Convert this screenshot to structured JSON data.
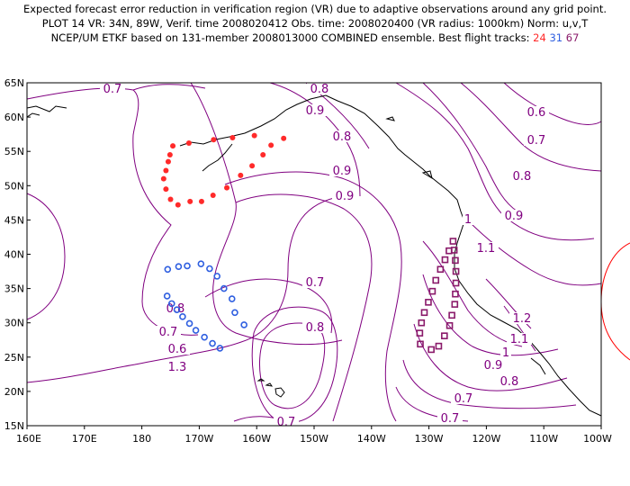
{
  "title": {
    "line1": "Expected forecast error reduction in verification region (VR) due to adaptive observations around any grid point.",
    "line2": "PLOT 14 VR: 34N, 89W, Verif. time 2008020412 Obs. time: 2008020400 (VR radius: 1000km) Norm: u,v,T",
    "line3": "NCEP/UM ETKF based on 131-member 2008013000 COMBINED ensemble.  Best flight tracks:",
    "tracks": [
      "24",
      "31",
      "67"
    ]
  },
  "axes": {
    "lat_labels": [
      "65N",
      "60N",
      "55N",
      "50N",
      "45N",
      "40N",
      "35N",
      "30N",
      "25N",
      "20N",
      "15N"
    ],
    "lon_labels": [
      "160E",
      "170E",
      "180",
      "170W",
      "160W",
      "150W",
      "140W",
      "130W",
      "120W",
      "110W",
      "100W"
    ]
  },
  "contour_labels": [
    "0.7",
    "0.8",
    "0.9",
    "0.6",
    "0.7",
    "0.8",
    "0.9",
    "0.9",
    "0.8",
    "0.7",
    "1",
    "0.9",
    "1.1",
    "0.7",
    "0.8",
    "0.8",
    "0.7",
    "0.6",
    "1.3",
    "1.2",
    "1.1",
    "1",
    "0.9",
    "0.8",
    "0.7",
    "0.7"
  ],
  "colors": {
    "contour": "#800080",
    "coast": "#000000",
    "track24": "#ff2a2a",
    "track31": "#2f5fe0",
    "track67": "#8a1a6a",
    "verification_circle": "#ff0000"
  },
  "tracks": [
    {
      "id": "24",
      "marker": "filled-circle",
      "points": [
        [
          -176.2,
          51.0
        ],
        [
          -175.8,
          52.2
        ],
        [
          -175.4,
          53.5
        ],
        [
          -175.1,
          54.5
        ],
        [
          -174.6,
          55.8
        ],
        [
          -171.8,
          56.2
        ],
        [
          -167.5,
          56.7
        ],
        [
          -164.2,
          57.0
        ],
        [
          -160.4,
          57.3
        ],
        [
          -155.3,
          56.9
        ],
        [
          -157.5,
          55.9
        ],
        [
          -158.9,
          54.5
        ],
        [
          -160.8,
          52.9
        ],
        [
          -162.8,
          51.5
        ],
        [
          -165.2,
          49.7
        ],
        [
          -167.6,
          48.6
        ],
        [
          -169.6,
          47.7
        ],
        [
          -171.6,
          47.7
        ],
        [
          -173.7,
          47.2
        ],
        [
          -175.0,
          48.0
        ],
        [
          -175.8,
          49.5
        ]
      ]
    },
    {
      "id": "31",
      "marker": "open-circle",
      "points": [
        [
          -175.5,
          37.8
        ],
        [
          -173.6,
          38.2
        ],
        [
          -172.1,
          38.3
        ],
        [
          -169.7,
          38.6
        ],
        [
          -168.2,
          37.9
        ],
        [
          -166.9,
          36.8
        ],
        [
          -165.7,
          35.0
        ],
        [
          -164.3,
          33.5
        ],
        [
          -163.8,
          31.5
        ],
        [
          -162.2,
          29.7
        ],
        [
          -175.6,
          33.9
        ],
        [
          -174.8,
          32.8
        ],
        [
          -173.9,
          31.9
        ],
        [
          -172.9,
          30.9
        ],
        [
          -171.7,
          29.9
        ],
        [
          -170.6,
          28.9
        ],
        [
          -169.1,
          27.9
        ],
        [
          -167.7,
          27.0
        ],
        [
          -166.4,
          26.3
        ]
      ]
    },
    {
      "id": "67",
      "marker": "open-square",
      "points": [
        [
          -125.8,
          41.9
        ],
        [
          -126.5,
          40.5
        ],
        [
          -127.2,
          39.2
        ],
        [
          -128.0,
          37.8
        ],
        [
          -128.8,
          36.2
        ],
        [
          -129.4,
          34.6
        ],
        [
          -130.1,
          33.0
        ],
        [
          -130.8,
          31.5
        ],
        [
          -131.3,
          30.0
        ],
        [
          -131.6,
          28.5
        ],
        [
          -131.5,
          26.9
        ],
        [
          -129.6,
          26.1
        ],
        [
          -128.3,
          26.6
        ],
        [
          -127.3,
          28.1
        ],
        [
          -126.4,
          29.6
        ],
        [
          -126.0,
          31.1
        ],
        [
          -125.5,
          32.7
        ],
        [
          -125.4,
          34.2
        ],
        [
          -125.3,
          35.8
        ],
        [
          -125.3,
          37.5
        ],
        [
          -125.4,
          39.1
        ],
        [
          -125.6,
          40.6
        ]
      ]
    }
  ]
}
